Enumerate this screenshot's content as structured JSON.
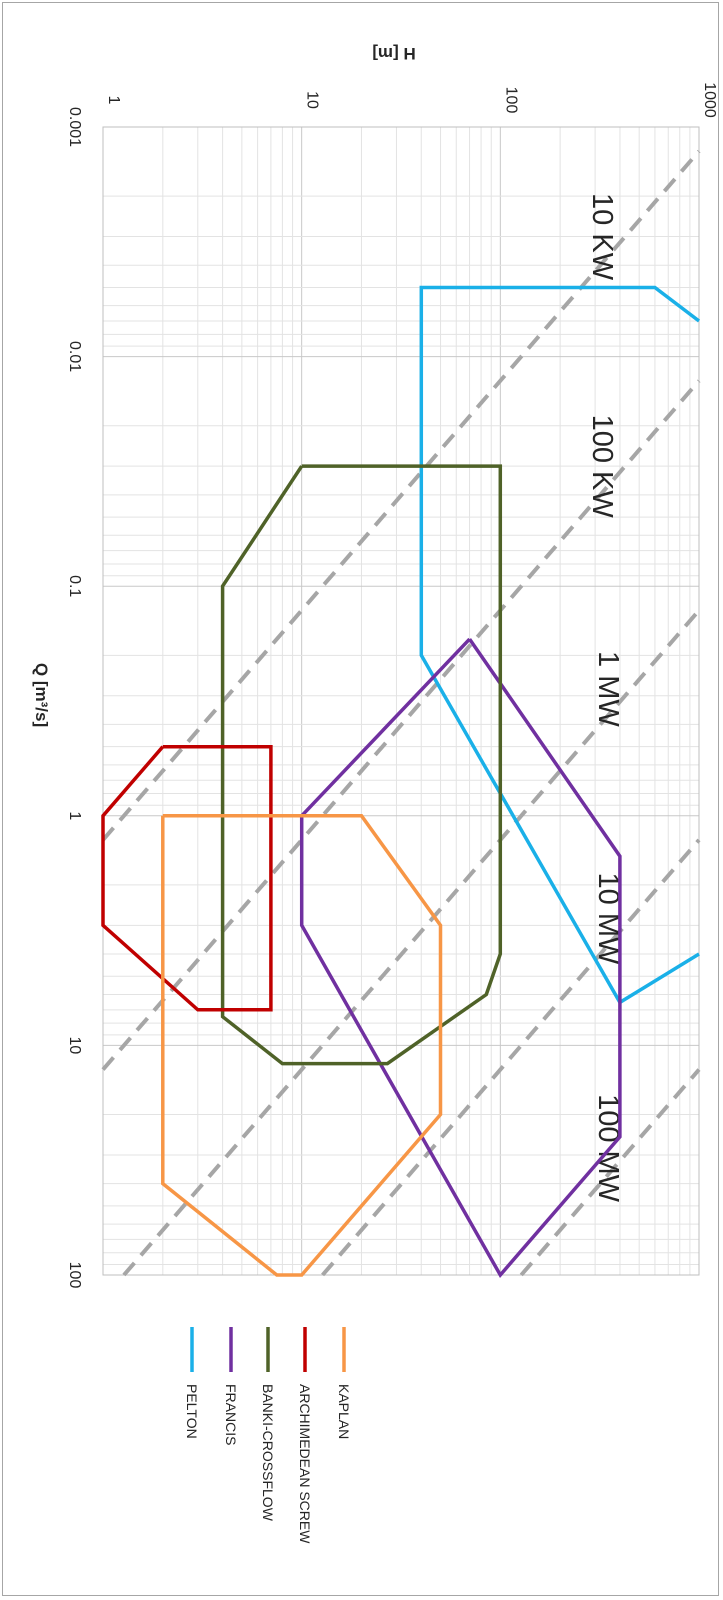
{
  "chart_data": {
    "type": "line",
    "xlabel": "Q [m³/s]",
    "ylabel": "H [m]",
    "x_scale": "log",
    "y_scale": "log",
    "xlim": [
      0.001,
      100
    ],
    "ylim": [
      1,
      1000
    ],
    "x_ticks": [
      "0.001",
      "0.01",
      "0.1",
      "1",
      "10",
      "100"
    ],
    "y_ticks": [
      "1",
      "10",
      "100",
      "1000"
    ],
    "grid": true,
    "legend_position": "bottom",
    "power_lines": [
      {
        "label": "10 KW",
        "kw": 10
      },
      {
        "label": "100 KW",
        "kw": 100
      },
      {
        "label": "1 MW",
        "kw": 1000
      },
      {
        "label": "10 MW",
        "kw": 10000
      },
      {
        "label": "100 MW",
        "kw": 100000
      }
    ],
    "series": [
      {
        "name": "PELTON",
        "color": "#1ab0e8",
        "points": [
          [
            0.007,
            1000
          ],
          [
            0.005,
            600
          ],
          [
            0.005,
            40
          ],
          [
            0.2,
            40
          ],
          [
            6.5,
            400
          ],
          [
            4,
            1000
          ]
        ]
      },
      {
        "name": "FRANCIS",
        "color": "#7030a0",
        "points": [
          [
            0.17,
            70
          ],
          [
            1.5,
            400
          ],
          [
            25,
            400
          ],
          [
            100,
            100
          ],
          [
            3,
            10
          ],
          [
            1,
            10
          ],
          [
            0.17,
            70
          ]
        ]
      },
      {
        "name": "BANKI-CROSSFLOW",
        "color": "#4f6228",
        "points": [
          [
            0.03,
            10
          ],
          [
            0.1,
            4
          ],
          [
            7.5,
            4
          ],
          [
            12,
            8
          ],
          [
            12,
            27
          ],
          [
            6,
            85
          ],
          [
            4,
            100
          ],
          [
            0.03,
            100
          ],
          [
            0.03,
            10
          ]
        ]
      },
      {
        "name": "ARCHIMEDEAN SCREW",
        "color": "#c00000",
        "points": [
          [
            0.5,
            2
          ],
          [
            1,
            1
          ],
          [
            3,
            1
          ],
          [
            7,
            3
          ],
          [
            7,
            7
          ],
          [
            0.5,
            7
          ],
          [
            0.5,
            2
          ]
        ]
      },
      {
        "name": "KAPLAN",
        "color": "#f79646",
        "points": [
          [
            1,
            2
          ],
          [
            1,
            20
          ],
          [
            3,
            50
          ],
          [
            20,
            50
          ],
          [
            100,
            10
          ],
          [
            100,
            7.5
          ],
          [
            40,
            2
          ],
          [
            1,
            2
          ]
        ]
      }
    ]
  }
}
